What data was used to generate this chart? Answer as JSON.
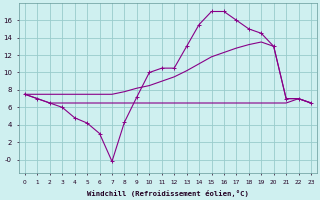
{
  "xlabel": "Windchill (Refroidissement éolien,°C)",
  "background_color": "#cff0f0",
  "grid_color": "#99cccc",
  "line_color": "#880088",
  "line1_x": [
    0,
    1,
    2,
    3,
    4,
    5,
    6,
    7,
    8,
    9,
    10,
    11,
    12,
    13,
    14,
    15,
    16,
    17,
    18,
    19,
    20,
    21,
    22,
    23
  ],
  "line1_y": [
    7.5,
    7.0,
    6.5,
    6.0,
    4.8,
    4.2,
    3.0,
    -0.2,
    4.3,
    7.2,
    10.0,
    10.5,
    10.5,
    13.0,
    15.5,
    17.0,
    17.0,
    16.0,
    15.0,
    14.5,
    13.0,
    7.0,
    7.0,
    6.5
  ],
  "line2_x": [
    0,
    1,
    2,
    3,
    4,
    5,
    6,
    7,
    8,
    9,
    10,
    11,
    12,
    13,
    14,
    15,
    16,
    17,
    18,
    19,
    20,
    21,
    22,
    23
  ],
  "line2_y": [
    7.5,
    7.5,
    7.5,
    7.5,
    7.5,
    7.5,
    7.5,
    7.5,
    7.8,
    8.2,
    8.5,
    9.0,
    9.5,
    10.2,
    11.0,
    11.8,
    12.3,
    12.8,
    13.2,
    13.5,
    13.0,
    7.0,
    7.0,
    6.5
  ],
  "line3_x": [
    0,
    1,
    2,
    3,
    4,
    5,
    6,
    7,
    8,
    9,
    10,
    11,
    12,
    13,
    14,
    15,
    16,
    17,
    18,
    19,
    20,
    21,
    22,
    23
  ],
  "line3_y": [
    7.5,
    7.0,
    6.5,
    6.5,
    6.5,
    6.5,
    6.5,
    6.5,
    6.5,
    6.5,
    6.5,
    6.5,
    6.5,
    6.5,
    6.5,
    6.5,
    6.5,
    6.5,
    6.5,
    6.5,
    6.5,
    6.5,
    7.0,
    6.5
  ],
  "ylim": [
    -1.5,
    18
  ],
  "yticks": [
    0,
    2,
    4,
    6,
    8,
    10,
    12,
    14,
    16
  ],
  "ytick_labels": [
    "-0",
    "2",
    "4",
    "6",
    "8",
    "10",
    "12",
    "14",
    "16"
  ],
  "marker": "+"
}
